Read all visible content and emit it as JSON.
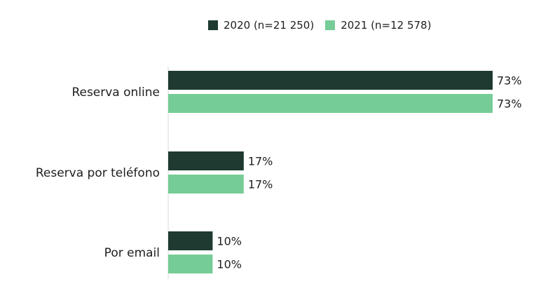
{
  "chart_data": {
    "type": "bar",
    "orientation": "horizontal",
    "categories": [
      "Reserva online",
      "Reserva por teléfono",
      "Por email"
    ],
    "series": [
      {
        "name": "2020 (n=21 250)",
        "values": [
          73,
          17,
          10
        ],
        "color": "#1e3a31"
      },
      {
        "name": "2021 (n=12 578)",
        "values": [
          73,
          17,
          10
        ],
        "color": "#76cc96"
      }
    ],
    "value_suffix": "%",
    "xlim": [
      0,
      73
    ],
    "legend_position": "top-center",
    "grid": false,
    "title": "",
    "xlabel": "",
    "ylabel": ""
  }
}
